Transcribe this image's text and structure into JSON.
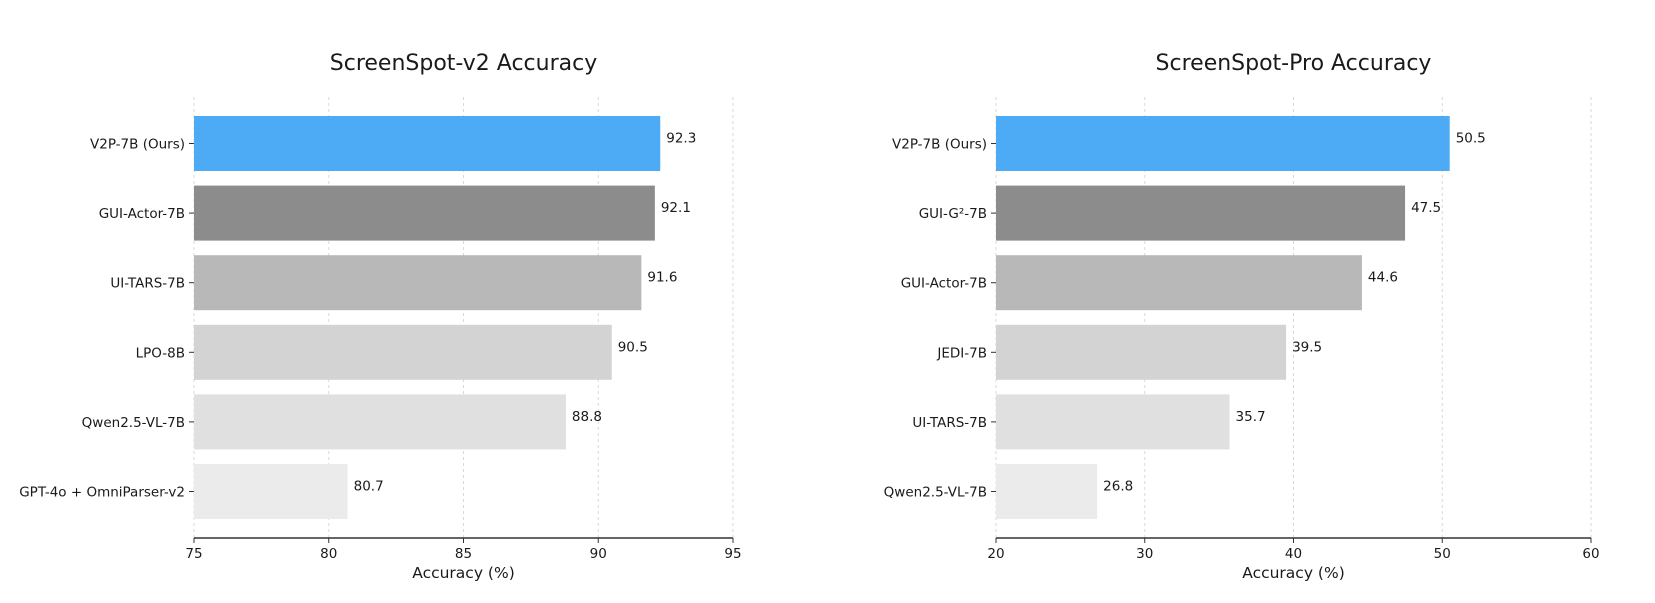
{
  "chart_data": [
    {
      "type": "bar",
      "orientation": "horizontal",
      "title": "ScreenSpot-v2 Accuracy",
      "xlabel": "Accuracy (%)",
      "xlim": [
        75,
        95
      ],
      "xticks": [
        "75",
        "80",
        "85",
        "90",
        "95"
      ],
      "xtick_values": [
        75,
        80,
        85,
        90,
        95
      ],
      "grid": "vertical dashed",
      "categories": [
        "V2P-7B (Ours)",
        "GUI-Actor-7B",
        "UI-TARS-7B",
        "LPO-8B",
        "Qwen2.5-VL-7B",
        "GPT-4o + OmniParser-v2"
      ],
      "values": [
        92.3,
        92.1,
        91.6,
        90.5,
        88.8,
        80.7
      ],
      "value_labels": [
        "92.3",
        "92.1",
        "91.6",
        "90.5",
        "88.8",
        "80.7"
      ],
      "colors": [
        "#4dabf5",
        "#8c8c8c",
        "#b8b8b8",
        "#d3d3d3",
        "#e0e0e0",
        "#ebebeb"
      ]
    },
    {
      "type": "bar",
      "orientation": "horizontal",
      "title": "ScreenSpot-Pro Accuracy",
      "xlabel": "Accuracy (%)",
      "xlim": [
        20,
        60
      ],
      "xticks": [
        "20",
        "30",
        "40",
        "50",
        "60"
      ],
      "xtick_values": [
        20,
        30,
        40,
        50,
        60
      ],
      "grid": "vertical dashed",
      "categories": [
        "V2P-7B (Ours)",
        "GUI-G²-7B",
        "GUI-Actor-7B",
        "JEDI-7B",
        "UI-TARS-7B",
        "Qwen2.5-VL-7B"
      ],
      "values": [
        50.5,
        47.5,
        44.6,
        39.5,
        35.7,
        26.8
      ],
      "value_labels": [
        "50.5",
        "47.5",
        "44.6",
        "39.5",
        "35.7",
        "26.8"
      ],
      "colors": [
        "#4dabf5",
        "#8c8c8c",
        "#b8b8b8",
        "#d3d3d3",
        "#e0e0e0",
        "#ebebeb"
      ]
    }
  ]
}
